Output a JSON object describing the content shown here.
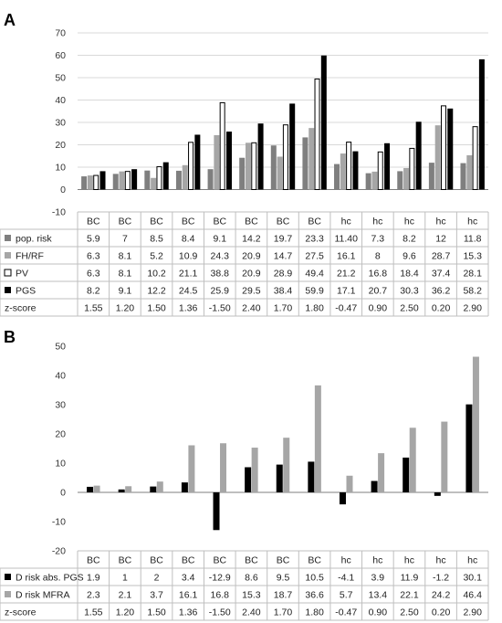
{
  "chart_data": [
    {
      "panel": "A",
      "type": "bar",
      "categories": [
        "BC",
        "BC",
        "BC",
        "BC",
        "BC",
        "BC",
        "BC",
        "BC",
        "hc",
        "hc",
        "hc",
        "hc",
        "hc"
      ],
      "ylim": [
        -10,
        70
      ],
      "yticks": [
        -10,
        0,
        10,
        20,
        30,
        40,
        50,
        60,
        70
      ],
      "grid": true,
      "legend": "table-rows",
      "series": [
        {
          "name": "pop. risk",
          "color": "#7f7f7f",
          "marker": "filled",
          "values": [
            5.9,
            7,
            8.5,
            8.4,
            9.1,
            14.2,
            19.7,
            23.3,
            11.4,
            7.3,
            8.2,
            12,
            11.8
          ]
        },
        {
          "name": "FH/RF",
          "color": "#a6a6a6",
          "marker": "filled",
          "values": [
            6.3,
            8.1,
            5.2,
            10.9,
            24.3,
            20.9,
            14.7,
            27.5,
            16.1,
            8,
            9.6,
            28.7,
            15.3
          ]
        },
        {
          "name": "PV",
          "color": "#ffffff",
          "marker": "outline",
          "values": [
            6.3,
            8.1,
            10.2,
            21.1,
            38.8,
            20.9,
            28.9,
            49.4,
            21.2,
            16.8,
            18.4,
            37.4,
            28.1
          ]
        },
        {
          "name": "PGS",
          "color": "#000000",
          "marker": "filled",
          "values": [
            8.2,
            9.1,
            12.2,
            24.5,
            25.9,
            29.5,
            38.4,
            59.9,
            17.1,
            20.7,
            30.3,
            36.2,
            58.2
          ]
        }
      ],
      "table_labels": {
        "pop_risk": [
          "5.9",
          "7",
          "8.5",
          "8.4",
          "9.1",
          "14.2",
          "19.7",
          "23.3",
          "11.40",
          "7.3",
          "8.2",
          "12",
          "11.8"
        ],
        "fh_rf": [
          "6.3",
          "8.1",
          "5.2",
          "10.9",
          "24.3",
          "20.9",
          "14.7",
          "27.5",
          "16.1",
          "8",
          "9.6",
          "28.7",
          "15.3"
        ],
        "pv": [
          "6.3",
          "8.1",
          "10.2",
          "21.1",
          "38.8",
          "20.9",
          "28.9",
          "49.4",
          "21.2",
          "16.8",
          "18.4",
          "37.4",
          "28.1"
        ],
        "pgs": [
          "8.2",
          "9.1",
          "12.2",
          "24.5",
          "25.9",
          "29.5",
          "38.4",
          "59.9",
          "17.1",
          "20.7",
          "30.3",
          "36.2",
          "58.2"
        ]
      },
      "extra_row": {
        "name": "z-score",
        "values": [
          "1.55",
          "1.20",
          "1.50",
          "1.36",
          "-1.50",
          "2.40",
          "1.70",
          "1.80",
          "-0.47",
          "0.90",
          "2.50",
          "0.20",
          "2.90"
        ]
      }
    },
    {
      "panel": "B",
      "type": "bar",
      "categories": [
        "BC",
        "BC",
        "BC",
        "BC",
        "BC",
        "BC",
        "BC",
        "BC",
        "hc",
        "hc",
        "hc",
        "hc",
        "hc"
      ],
      "ylim": [
        -20,
        50
      ],
      "yticks": [
        -20,
        -10,
        0,
        10,
        20,
        30,
        40,
        50
      ],
      "grid": false,
      "legend": "table-rows",
      "series": [
        {
          "name": "D risk abs. PGS",
          "color": "#000000",
          "marker": "filled",
          "values": [
            1.9,
            1,
            2,
            3.4,
            -12.9,
            8.6,
            9.5,
            10.5,
            -4.1,
            3.9,
            11.9,
            -1.2,
            30.1
          ]
        },
        {
          "name": "D risk MFRA",
          "color": "#a6a6a6",
          "marker": "filled",
          "values": [
            2.3,
            2.1,
            3.7,
            16.1,
            16.8,
            15.3,
            18.7,
            36.6,
            5.7,
            13.4,
            22.1,
            24.2,
            46.4
          ]
        }
      ],
      "table_labels": {
        "d_pgs": [
          "1.9",
          "1",
          "2",
          "3.4",
          "-12.9",
          "8.6",
          "9.5",
          "10.5",
          "-4.1",
          "3.9",
          "11.9",
          "-1.2",
          "30.1"
        ],
        "d_mfra": [
          "2.3",
          "2.1",
          "3.7",
          "16.1",
          "16.8",
          "15.3",
          "18.7",
          "36.6",
          "5.7",
          "13.4",
          "22.1",
          "24.2",
          "46.4"
        ]
      },
      "extra_row": {
        "name": "z-score",
        "values": [
          "1.55",
          "1.20",
          "1.50",
          "1.36",
          "-1.50",
          "2.40",
          "1.70",
          "1.80",
          "-0.47",
          "0.90",
          "2.50",
          "0.20",
          "2.90"
        ]
      }
    }
  ]
}
